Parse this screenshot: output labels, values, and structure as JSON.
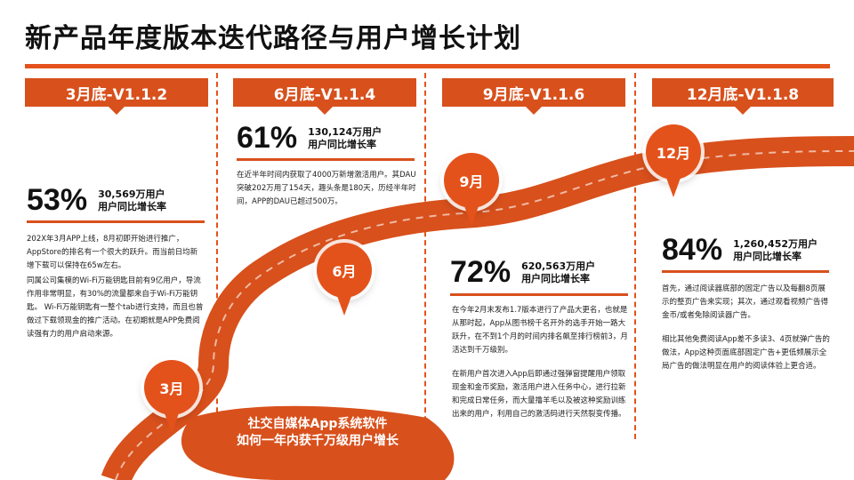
{
  "title": "新产品年度版本迭代路径与用户增长计划",
  "colors": {
    "accent": "#E4521B",
    "banner": "#D8501C"
  },
  "stages": [
    {
      "banner": "3月底-V1.1.2",
      "percent": "53%",
      "users": "30,569万用户",
      "growth": "用户同比增长率",
      "paragraphs": [
        "202X年3月APP上线，8月初即开始进行推广，AppStore的排名有一个很大的跃升。而当前日均新增下载可以保持在65w左右。",
        "同属公司集模的Wi-Fi万能钥匙目前有9亿用户，导流作用非常明显，有30%的流量都来自于Wi-Fi万能钥匙。 Wi-Fi万能钥匙有一整个tab进行支持，而且也曾做过下载领现金的推广活动。在初期就是APP免费阅读强有力的用户启动来源。"
      ],
      "pin": "3月"
    },
    {
      "banner": "6月底-V1.1.4",
      "percent": "61%",
      "users": "130,124万用户",
      "growth": "用户同比增长率",
      "paragraphs": [
        "在近半年时间内获取了4000万新增激活用户。其DAU突破202万用了154天，趣头条是180天，历经半年时间，APP的DAU已超过500万。"
      ],
      "pin": "6月"
    },
    {
      "banner": "9月底-V1.1.6",
      "percent": "72%",
      "users": "620,563万用户",
      "growth": "用户同比增长率",
      "paragraphs": [
        "在今年2月末发布1.7版本进行了产品大更名，也就是从那时起，App从图书榜千名开外的选手开始一路大跃升，在不到1个月的时间内排名飙至排行榜前3，月活达到千万级别。",
        "在新用户首次进入App后即通过强弹窗提醒用户领取现金和金币奖励，激活用户进入任务中心，进行拉新和完成日常任务，而大量撸羊毛以及被这种奖励训练出来的用户，利用自己的激活码进行天然裂变传播。"
      ],
      "pin": "9月"
    },
    {
      "banner": "12月底-V1.1.8",
      "percent": "84%",
      "users": "1,260,452万用户",
      "growth": "用户同比增长率",
      "paragraphs": [
        "首先，通过阅读器底部的固定广告以及每翻8页展示的整页广告来实现；其次，通过观看视频广告得金币/或者免除阅读器广告。",
        "相比其他免费阅读App差不多读3、4页就弹广告的做法，App这种页面底部固定广告+更低频展示全局广告的做法明显在用户的阅读体验上更合适。"
      ],
      "pin": "12月"
    }
  ],
  "road": {
    "caption_line1": "社交自媒体App系统软件",
    "caption_line2": "如何一年内获千万级用户增长"
  }
}
